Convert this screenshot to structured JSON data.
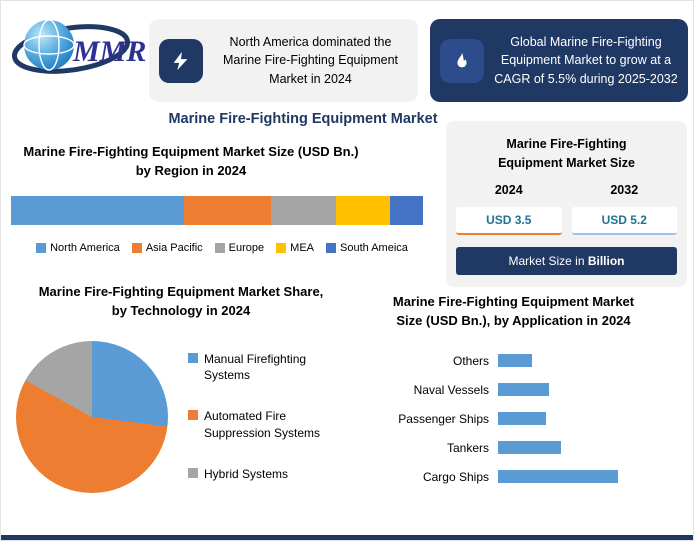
{
  "logo": {
    "text": "MMR"
  },
  "header": {
    "callout_left": {
      "icon": "lightning-bolt-icon",
      "text": "North America dominated the Marine Fire-Fighting Equipment Market in 2024"
    },
    "callout_right": {
      "icon": "flame-icon",
      "text": "Global Marine Fire-Fighting Equipment Market to grow at a CAGR of 5.5% during 2025-2032"
    }
  },
  "main_title": "Marine Fire-Fighting Equipment Market",
  "side_panel": {
    "title": "Marine Fire-Fighting Equipment Market Size",
    "year_left": "2024",
    "year_right": "2032",
    "value_left": "USD 3.5",
    "value_right": "USD 5.2",
    "value_color": "#1F7391",
    "accent_left": "#ED7D31",
    "accent_right": "#9DC3E6",
    "footer_prefix": "Market Size in ",
    "footer_bold": "Billion"
  },
  "colors": {
    "navy": "#203864",
    "panel_gray": "#F2F2F2",
    "blue": "#5B9BD5",
    "orange": "#ED7D31",
    "gray": "#A5A5A5",
    "yellow": "#FFC000",
    "dark_blue": "#4472C4"
  },
  "chart_data": [
    {
      "type": "bar",
      "subtype": "stacked-horizontal",
      "title": "Marine Fire-Fighting Equipment Market Size (USD Bn.) by Region in 2024",
      "categories": [
        "North America",
        "Asia Pacific",
        "Europe",
        "MEA",
        "South Ameica"
      ],
      "values": [
        42,
        21,
        16,
        13,
        8
      ],
      "unit": "% share of total bar width in 2024",
      "colors": [
        "#5B9BD5",
        "#ED7D31",
        "#A5A5A5",
        "#FFC000",
        "#4472C4"
      ],
      "legend_position": "bottom"
    },
    {
      "type": "pie",
      "title": "Marine Fire-Fighting Equipment Market Share, by Technology in 2024",
      "categories": [
        "Manual Firefighting Systems",
        "Automated Fire Suppression Systems",
        "Hybrid Systems"
      ],
      "values": [
        27,
        56,
        17
      ],
      "unit": "% market share",
      "colors": [
        "#5B9BD5",
        "#ED7D31",
        "#A5A5A5"
      ],
      "legend_position": "right"
    },
    {
      "type": "bar",
      "subtype": "horizontal",
      "title": "Marine Fire-Fighting Equipment Market Size (USD Bn.), by Application in 2024",
      "categories": [
        "Others",
        "Naval Vessels",
        "Passenger Ships",
        "Tankers",
        "Cargo Ships"
      ],
      "values": [
        0.3,
        0.45,
        0.42,
        0.55,
        1.05
      ],
      "unit": "USD Bn. (estimated from bar lengths)",
      "bar_color": "#5B9BD5",
      "xlim": [
        0,
        1.1
      ]
    }
  ]
}
